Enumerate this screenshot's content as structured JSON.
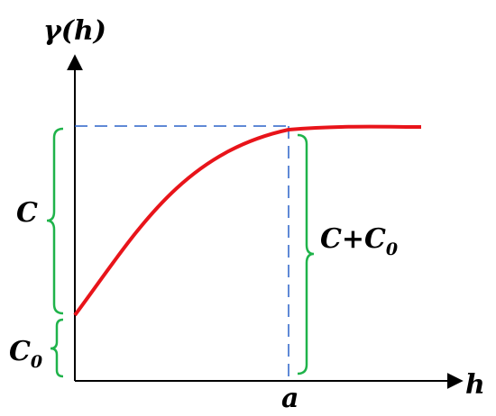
{
  "y_axis_label": "γ(h)",
  "x_axis_label": "h",
  "range_label": "a",
  "sill_label": "C",
  "nugget_label": {
    "base": "C",
    "sub": "0"
  },
  "total_label": {
    "base": "C+C",
    "sub": "0"
  }
}
